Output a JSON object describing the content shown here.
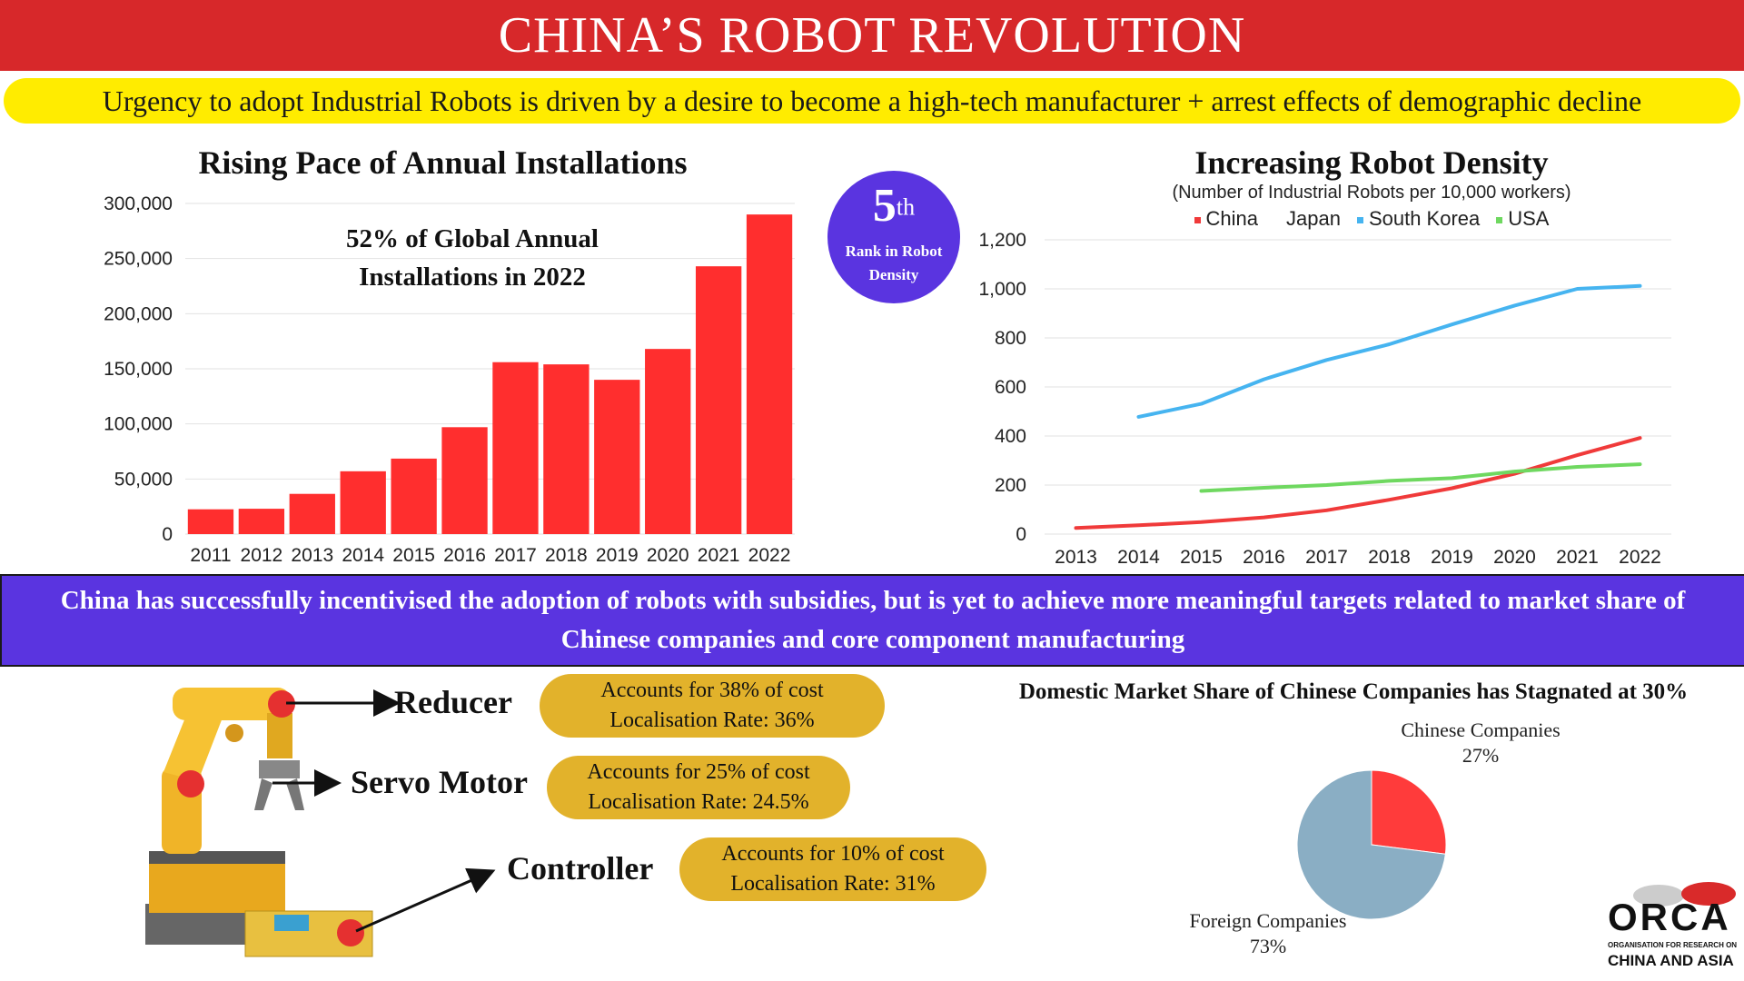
{
  "header": {
    "title": "CHINA’S ROBOT REVOLUTION",
    "subtitle": "Urgency to adopt Industrial Robots is driven by a desire to become a high-tech manufacturer + arrest effects of demographic decline"
  },
  "chart_data": [
    {
      "type": "bar",
      "title": "Rising Pace of Annual Installations",
      "annotation": "52% of Global Annual Installations in 2022",
      "categories": [
        "2011",
        "2012",
        "2013",
        "2014",
        "2015",
        "2016",
        "2017",
        "2018",
        "2019",
        "2020",
        "2021",
        "2022"
      ],
      "values": [
        22500,
        23000,
        36500,
        57000,
        68500,
        97000,
        156000,
        154000,
        140000,
        168000,
        243000,
        290000
      ],
      "ylim": [
        0,
        300000
      ],
      "yticks": [
        0,
        50000,
        100000,
        150000,
        200000,
        250000,
        300000
      ],
      "ytick_labels": [
        "0",
        "50,000",
        "100,000",
        "150,000",
        "200,000",
        "250,000",
        "300,000"
      ],
      "color": "#ff2e2e",
      "xlabel": "",
      "ylabel": ""
    },
    {
      "type": "line",
      "title": "Increasing Robot Density",
      "subtitle": "(Number of Industrial Robots per 10,000 workers)",
      "x": [
        "2013",
        "2014",
        "2015",
        "2016",
        "2017",
        "2018",
        "2019",
        "2020",
        "2021",
        "2022"
      ],
      "ylim": [
        0,
        1200
      ],
      "yticks": [
        0,
        200,
        400,
        600,
        800,
        1000,
        1200
      ],
      "ytick_labels": [
        "0",
        "200",
        "400",
        "600",
        "800",
        "1,000",
        "1,200"
      ],
      "legend_position": "top",
      "series": [
        {
          "name": "China",
          "color": "#f03a3a",
          "values": [
            25,
            36,
            49,
            68,
            97,
            140,
            187,
            246,
            322,
            392
          ]
        },
        {
          "name": "Japan",
          "color": "#ffffff",
          "values": [
            null,
            null,
            null,
            null,
            null,
            null,
            null,
            null,
            null,
            null
          ]
        },
        {
          "name": "South Korea",
          "color": "#46b4f0",
          "values": [
            null,
            478,
            531,
            631,
            710,
            774,
            855,
            932,
            1000,
            1012
          ]
        },
        {
          "name": "USA",
          "color": "#6fd860",
          "values": [
            null,
            null,
            176,
            189,
            200,
            217,
            228,
            255,
            274,
            285
          ]
        }
      ]
    },
    {
      "type": "pie",
      "title": "Domestic Market Share of Chinese Companies has Stagnated at 30%",
      "slices": [
        {
          "label": "Chinese Companies",
          "value": 27,
          "display": "27%",
          "color": "#ff3b3b"
        },
        {
          "label": "Foreign Companies",
          "value": 73,
          "display": "73%",
          "color": "#8aaec4"
        }
      ]
    }
  ],
  "rank_badge": {
    "rank": "5",
    "suffix": "th",
    "text": "Rank in Robot Density"
  },
  "banner": {
    "text": "China has successfully incentivised the adoption of robots with subsidies, but is yet to achieve more meaningful targets related to market share of Chinese companies and core component manufacturing"
  },
  "components": [
    {
      "name": "Reducer",
      "cost": "Accounts for 38% of cost",
      "localisation": "Localisation Rate: 36%"
    },
    {
      "name": "Servo Motor",
      "cost": "Accounts for 25% of cost",
      "localisation": "Localisation Rate: 24.5%"
    },
    {
      "name": "Controller",
      "cost": "Accounts for 10% of cost",
      "localisation": "Localisation Rate: 31%"
    }
  ],
  "logo": {
    "name": "ORCA",
    "line1": "ORGANISATION FOR RESEARCH ON",
    "line2": "CHINA AND ASIA"
  },
  "colors": {
    "title_bar": "#d7282a",
    "subtitle_bar": "#ffec00",
    "banner": "#5a34e0",
    "pill": "#e2b22b"
  }
}
